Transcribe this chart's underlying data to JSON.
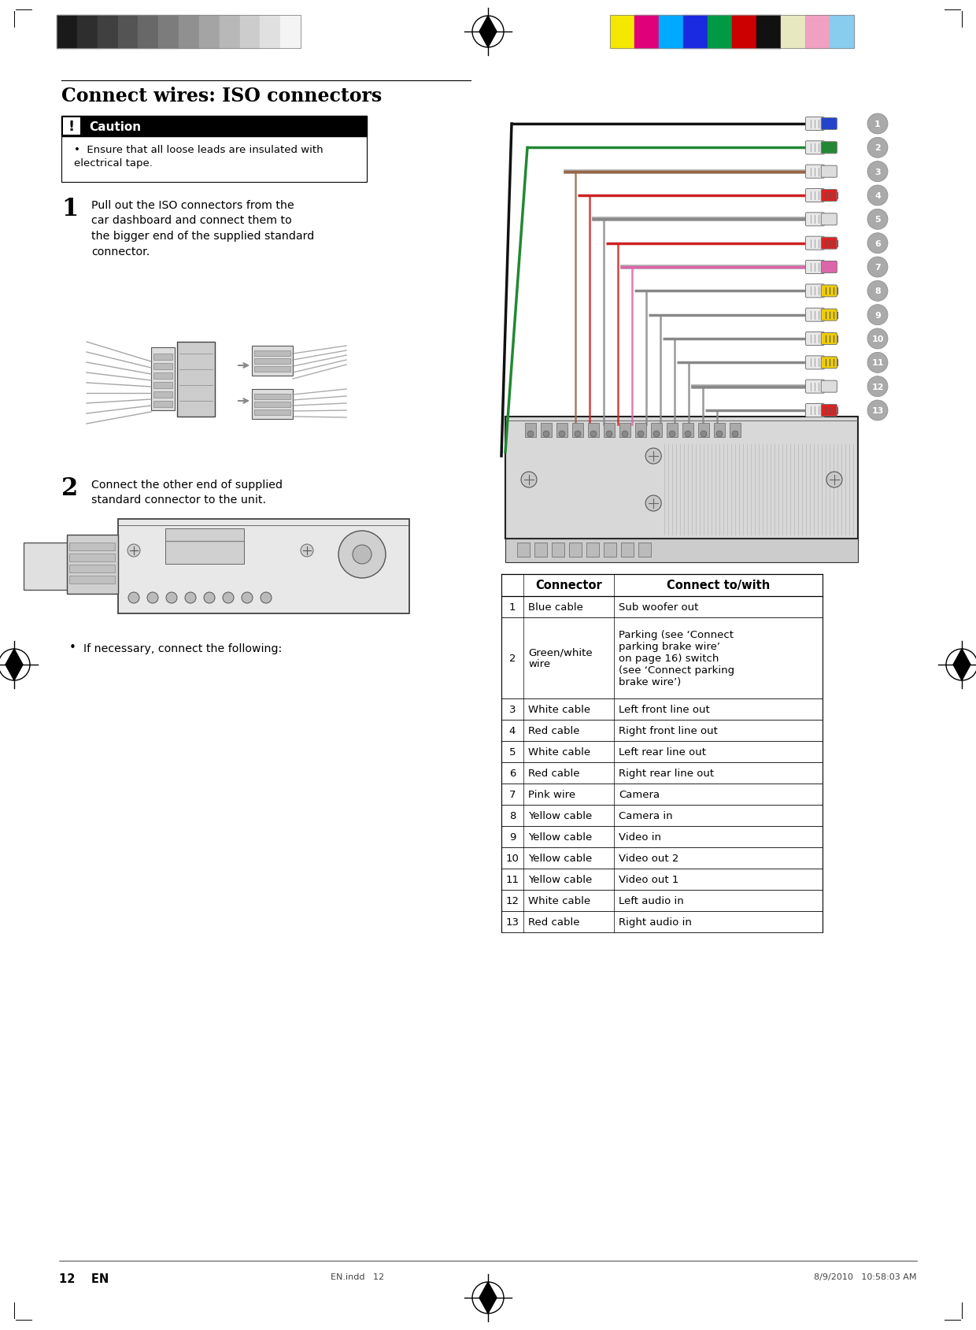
{
  "page_title": "Connect wires: ISO connectors",
  "caution_title": "Caution",
  "caution_text": "Ensure that all loose leads are insulated with\nelectrical tape.",
  "step1_num": "1",
  "step1_text": "Pull out the ISO connectors from the\ncar dashboard and connect them to\nthe bigger end of the supplied standard\nconnector.",
  "step2_num": "2",
  "step2_text": "Connect the other end of supplied\nstandard connector to the unit.",
  "bullet_text": "If necessary, connect the following:",
  "table_headers": [
    "Connector",
    "Connect to/with"
  ],
  "table_rows": [
    [
      "1",
      "Blue cable",
      "Sub woofer out"
    ],
    [
      "2",
      "Green/white\nwire",
      "Parking (see ‘Connect\nparking brake wire’\non page 16) switch\n(see ‘Connect parking\nbrake wire’)"
    ],
    [
      "3",
      "White cable",
      "Left front line out"
    ],
    [
      "4",
      "Red cable",
      "Right front line out"
    ],
    [
      "5",
      "White cable",
      "Left rear line out"
    ],
    [
      "6",
      "Red cable",
      "Right rear line out"
    ],
    [
      "7",
      "Pink wire",
      "Camera"
    ],
    [
      "8",
      "Yellow cable",
      "Camera in"
    ],
    [
      "9",
      "Yellow cable",
      "Video in"
    ],
    [
      "10",
      "Yellow cable",
      "Video out 2"
    ],
    [
      "11",
      "Yellow cable",
      "Video out 1"
    ],
    [
      "12",
      "White cable",
      "Left audio in"
    ],
    [
      "13",
      "Red cable",
      "Right audio in"
    ]
  ],
  "page_num": "12",
  "page_lang": "EN",
  "footer_left": "EN.indd   12",
  "footer_right": "8/9/2010   10:58:03 AM",
  "bg_color": "#ffffff",
  "gray_bar_colors": [
    "#1a1a1a",
    "#2e2e2e",
    "#404040",
    "#545454",
    "#686868",
    "#7c7c7c",
    "#909090",
    "#a4a4a4",
    "#b8b8b8",
    "#cccccc",
    "#e0e0e0",
    "#f4f4f4"
  ],
  "color_bar_colors": [
    "#f5e800",
    "#e0007a",
    "#00aaff",
    "#1a2ae0",
    "#009a44",
    "#cc0000",
    "#111111",
    "#e8e8c0",
    "#f0a0c0",
    "#88ccee"
  ],
  "wire_colors": [
    "#111111",
    "#228833",
    "#996644",
    "#cc2222",
    "#888888",
    "#cc2222",
    "#dd66aa",
    "#888888",
    "#888888",
    "#888888",
    "#888888",
    "#888888",
    "#888888"
  ],
  "connector_tip_colors": [
    "#2244cc",
    "#228833",
    "#dddddd",
    "#dd2222",
    "#dddddd",
    "#dd2222",
    "#dd66aa",
    "#eecc00",
    "#eecc00",
    "#eecc00",
    "#eecc00",
    "#dddddd",
    "#dd2222"
  ],
  "connector_stripe_colors": [
    "#2244cc",
    "#228833",
    "#888888",
    "#dd2222",
    "#888888",
    "#dd2222",
    "#dd66aa",
    "#eecc00",
    "#eecc00",
    "#eecc00",
    "#eecc00",
    "#888888",
    "#dd2222"
  ],
  "number_circle_color": "#aaaaaa",
  "wire_names": [
    "Blue",
    "Green",
    "White",
    "Red",
    "White",
    "Red",
    "Pink",
    "Yellow",
    "Yellow",
    "Yellow",
    "Yellow",
    "White",
    "Red"
  ]
}
